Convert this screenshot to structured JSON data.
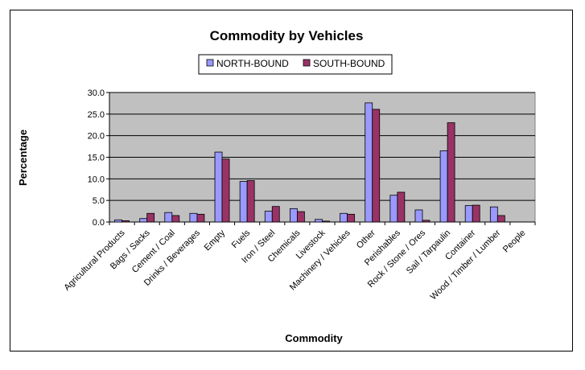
{
  "chart_data": {
    "type": "bar",
    "title": "Commodity by Vehicles",
    "xlabel": "Commodity",
    "ylabel": "Percentage",
    "ylim": [
      0,
      30
    ],
    "yticks": [
      "0.0",
      "5.0",
      "10.0",
      "15.0",
      "20.0",
      "25.0",
      "30.0"
    ],
    "grid": true,
    "legend_position": "top-center",
    "categories": [
      "Agricultural Products",
      "Bags / Sacks",
      "Cement / Coal",
      "Drinks / Beverages",
      "Empty",
      "Fuels",
      "Iron / Steel",
      "Chemicals",
      "Livestock",
      "Machinery / Vehicles",
      "Other",
      "Perishables",
      "Rock / Stone / Ores",
      "Sail / Tarpaulin",
      "Container",
      "Wood / Timber / Lumber",
      "People"
    ],
    "series": [
      {
        "name": "NORTH-BOUND",
        "color": "#9999ff",
        "values": [
          0.5,
          0.8,
          2.2,
          2.0,
          16.2,
          9.4,
          2.5,
          3.1,
          0.6,
          2.0,
          27.6,
          6.2,
          2.8,
          16.5,
          3.8,
          3.5,
          0
        ]
      },
      {
        "name": "SOUTH-BOUND",
        "color": "#993366",
        "values": [
          0.3,
          2.0,
          1.5,
          1.8,
          14.6,
          9.6,
          3.6,
          2.4,
          0.2,
          1.8,
          26.1,
          6.9,
          0.4,
          23.0,
          3.9,
          1.5,
          0
        ]
      }
    ],
    "plot_background": "#c0c0c0"
  }
}
